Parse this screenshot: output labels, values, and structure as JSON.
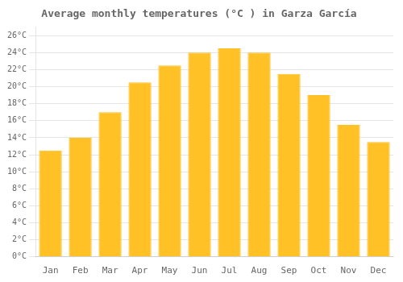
{
  "chart_data": {
    "type": "bar",
    "title": "Average monthly temperatures (°C ) in Garza García",
    "categories": [
      "Jan",
      "Feb",
      "Mar",
      "Apr",
      "May",
      "Jun",
      "Jul",
      "Aug",
      "Sep",
      "Oct",
      "Nov",
      "Dec"
    ],
    "values": [
      12.5,
      14.0,
      17.0,
      20.5,
      22.5,
      24.0,
      24.5,
      24.0,
      21.5,
      19.0,
      15.5,
      13.5
    ],
    "color": "#FFC125",
    "ylim": [
      0,
      27
    ],
    "yticks": [
      {
        "value": 0,
        "label": "0°C"
      },
      {
        "value": 2,
        "label": "2°C"
      },
      {
        "value": 4,
        "label": "4°C"
      },
      {
        "value": 6,
        "label": "6°C"
      },
      {
        "value": 8,
        "label": "8°C"
      },
      {
        "value": 10,
        "label": "10°C"
      },
      {
        "value": 12,
        "label": "12°C"
      },
      {
        "value": 14,
        "label": "14°C"
      },
      {
        "value": 16,
        "label": "16°C"
      },
      {
        "value": 18,
        "label": "18°C"
      },
      {
        "value": 20,
        "label": "20°C"
      },
      {
        "value": 22,
        "label": "22°C"
      },
      {
        "value": 24,
        "label": "24°C"
      },
      {
        "value": 26,
        "label": "26°C"
      }
    ],
    "grid": true
  }
}
